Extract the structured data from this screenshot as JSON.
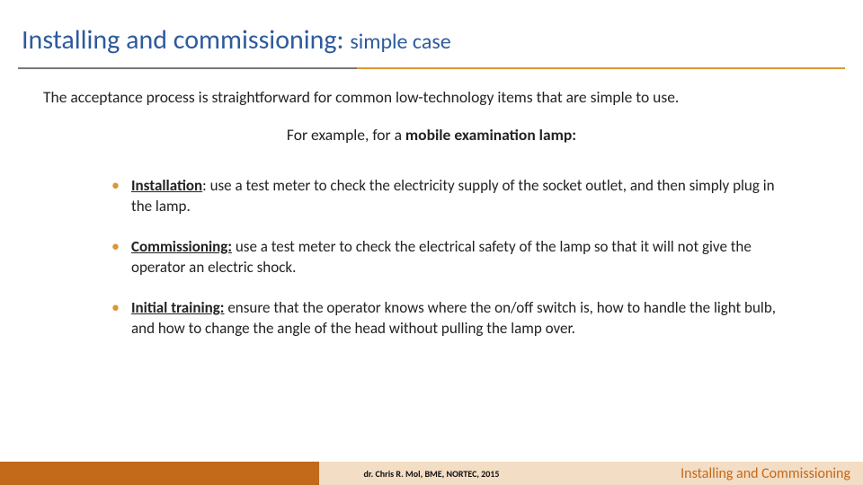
{
  "colors": {
    "title_color": "#2e5a9e",
    "rule_left_color": "#787878",
    "rule_right_color": "#d99634",
    "bullet_color": "#d99634",
    "footer_left_bg": "#c26a1a",
    "footer_right_bg": "#f3ddc4",
    "footer_title_color": "#c26a1a",
    "text_color": "#222222",
    "background": "#ffffff"
  },
  "layout": {
    "rule_left_width_pct": 41,
    "rule_right_width_pct": 59,
    "footer_left_width_pct": 37,
    "footer_right_width_pct": 63
  },
  "title": {
    "main": "Installing and commissioning:",
    "sub": "simple case",
    "main_fontsize": 30,
    "sub_fontsize": 24
  },
  "intro": "The acceptance process is straightforward for common low-technology items that are simple to use.",
  "example": {
    "lead": "For example, for a ",
    "emphasis": "mobile examination lamp:"
  },
  "bullets": [
    {
      "label": "Installation",
      "sep": ": ",
      "text": "use a test meter to check the electricity supply of the socket outlet, and then simply plug in the lamp."
    },
    {
      "label": "Commissioning:",
      "sep": " ",
      "text": "use a test meter to check the electrical safety of the lamp so that it will not give the operator an electric shock."
    },
    {
      "label": "Initial training:",
      "sep": " ",
      "text": "ensure that the operator knows where the on/off switch is, how to handle the light bulb, and how to change the angle of the head without pulling the lamp over."
    }
  ],
  "footer": {
    "credit": "dr. Chris R. Mol, BME, NORTEC, 2015",
    "title": "Installing and Commissioning",
    "credit_fontsize": 10,
    "title_fontsize": 16
  }
}
